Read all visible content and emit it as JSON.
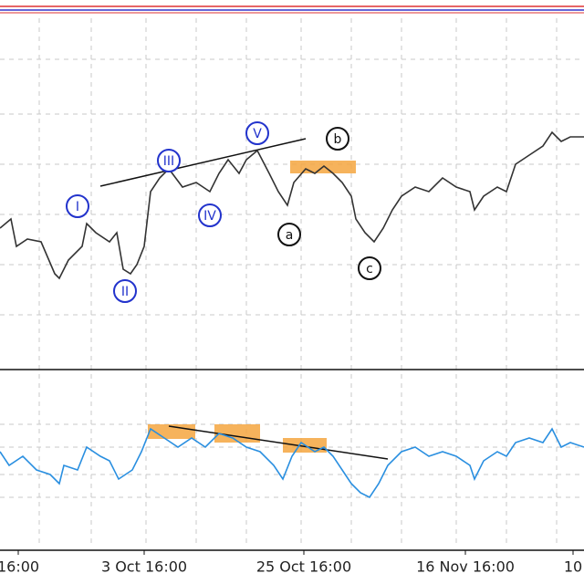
{
  "chart_data": [
    {
      "type": "line",
      "color": "#333333",
      "x": [
        0,
        12,
        18,
        30,
        45,
        60,
        65,
        75,
        90,
        95,
        105,
        120,
        128,
        135,
        143,
        150,
        158,
        165,
        175,
        185,
        200,
        215,
        230,
        240,
        250,
        262,
        270,
        282,
        295,
        305,
        315,
        322,
        335,
        345,
        355,
        365,
        375,
        385,
        390,
        400,
        410,
        420,
        430,
        440,
        455,
        470,
        485,
        500,
        515,
        520,
        530,
        545,
        555,
        565,
        580,
        595,
        605,
        615,
        625,
        640
      ],
      "values": [
        155,
        165,
        135,
        143,
        140,
        105,
        100,
        120,
        135,
        160,
        150,
        140,
        150,
        110,
        105,
        115,
        135,
        195,
        210,
        220,
        200,
        205,
        195,
        215,
        230,
        215,
        230,
        240,
        215,
        195,
        180,
        205,
        220,
        215,
        223,
        215,
        205,
        190,
        165,
        150,
        140,
        155,
        175,
        190,
        200,
        195,
        210,
        200,
        195,
        175,
        190,
        200,
        195,
        225,
        235,
        245,
        260,
        250,
        255,
        255
      ],
      "xlim": [
        0,
        640
      ],
      "ylim": [
        0,
        400
      ],
      "annotations": [
        {
          "text": "I",
          "x": 85,
          "y": 179,
          "color": "#2233cc"
        },
        {
          "text": "II",
          "x": 137,
          "y": 86,
          "color": "#2233cc"
        },
        {
          "text": "III",
          "x": 185,
          "y": 229,
          "color": "#2233cc"
        },
        {
          "text": "IV",
          "x": 230,
          "y": 169,
          "color": "#2233cc"
        },
        {
          "text": "V",
          "x": 282,
          "y": 259,
          "color": "#2233cc"
        },
        {
          "text": "a",
          "x": 317,
          "y": 148,
          "color": "#111111"
        },
        {
          "text": "b",
          "x": 370,
          "y": 253,
          "color": "#111111"
        },
        {
          "text": "c",
          "x": 405,
          "y": 111,
          "color": "#111111"
        }
      ]
    },
    {
      "type": "line",
      "color": "#2a8fe0",
      "x": [
        0,
        10,
        25,
        40,
        55,
        65,
        70,
        85,
        95,
        110,
        120,
        130,
        145,
        155,
        165,
        180,
        195,
        210,
        225,
        240,
        255,
        270,
        285,
        300,
        310,
        320,
        330,
        345,
        355,
        365,
        375,
        385,
        395,
        405,
        415,
        425,
        440,
        455,
        470,
        485,
        500,
        515,
        520,
        530,
        545,
        555,
        565,
        580,
        595,
        605,
        615,
        625,
        640
      ],
      "values": [
        105,
        90,
        100,
        85,
        80,
        70,
        90,
        85,
        110,
        100,
        95,
        75,
        85,
        105,
        130,
        120,
        110,
        120,
        110,
        125,
        120,
        110,
        105,
        90,
        75,
        100,
        115,
        105,
        110,
        100,
        85,
        70,
        60,
        55,
        70,
        90,
        105,
        110,
        100,
        105,
        100,
        90,
        75,
        95,
        105,
        100,
        115,
        120,
        115,
        130,
        110,
        115,
        110
      ],
      "xlim": [
        0,
        640
      ],
      "ylim": [
        0,
        190
      ],
      "xticks": [
        {
          "value": 20,
          "label": "16:00"
        },
        {
          "value": 158,
          "label": "3 Oct 16:00"
        },
        {
          "value": 333,
          "label": "25 Oct 16:00"
        },
        {
          "value": 510,
          "label": "16 Nov 16:00"
        },
        {
          "value": 628,
          "label": "10"
        }
      ]
    }
  ]
}
